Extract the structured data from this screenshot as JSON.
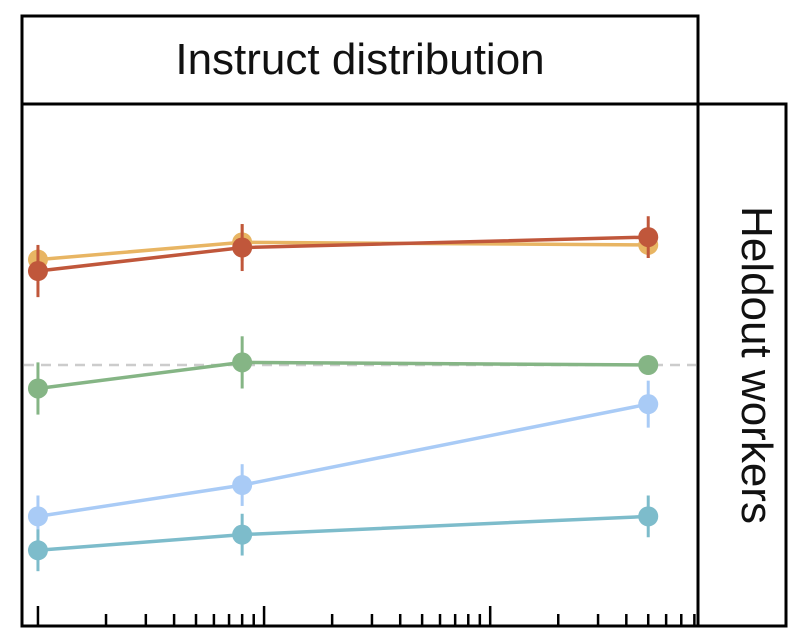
{
  "chart_data": {
    "type": "line",
    "title": "Instruct distribution",
    "facet_label": "Heldout workers",
    "xlabel": "",
    "ylabel": "",
    "x_scale": "log",
    "x": [
      1,
      8,
      500
    ],
    "xlim": [
      0.85,
      830
    ],
    "ylim": [
      0,
      1
    ],
    "reference_line_y": 0.5,
    "grid": false,
    "legend": "none",
    "series": [
      {
        "color": "#E8B563",
        "values": [
          0.702,
          0.735,
          0.73
        ],
        "errors": [
          0.025,
          0.035,
          0.025
        ]
      },
      {
        "color": "#C0573B",
        "values": [
          0.68,
          0.725,
          0.745
        ],
        "errors": [
          0.05,
          0.045,
          0.04
        ]
      },
      {
        "color": "#85B585",
        "values": [
          0.455,
          0.505,
          0.5
        ],
        "errors": [
          0.05,
          0.05,
          0.005
        ]
      },
      {
        "color": "#A9CBF6",
        "values": [
          0.21,
          0.27,
          0.425
        ],
        "errors": [
          0.04,
          0.04,
          0.045
        ]
      },
      {
        "color": "#7DBCCB",
        "values": [
          0.145,
          0.175,
          0.21
        ],
        "errors": [
          0.04,
          0.04,
          0.04
        ]
      }
    ]
  }
}
